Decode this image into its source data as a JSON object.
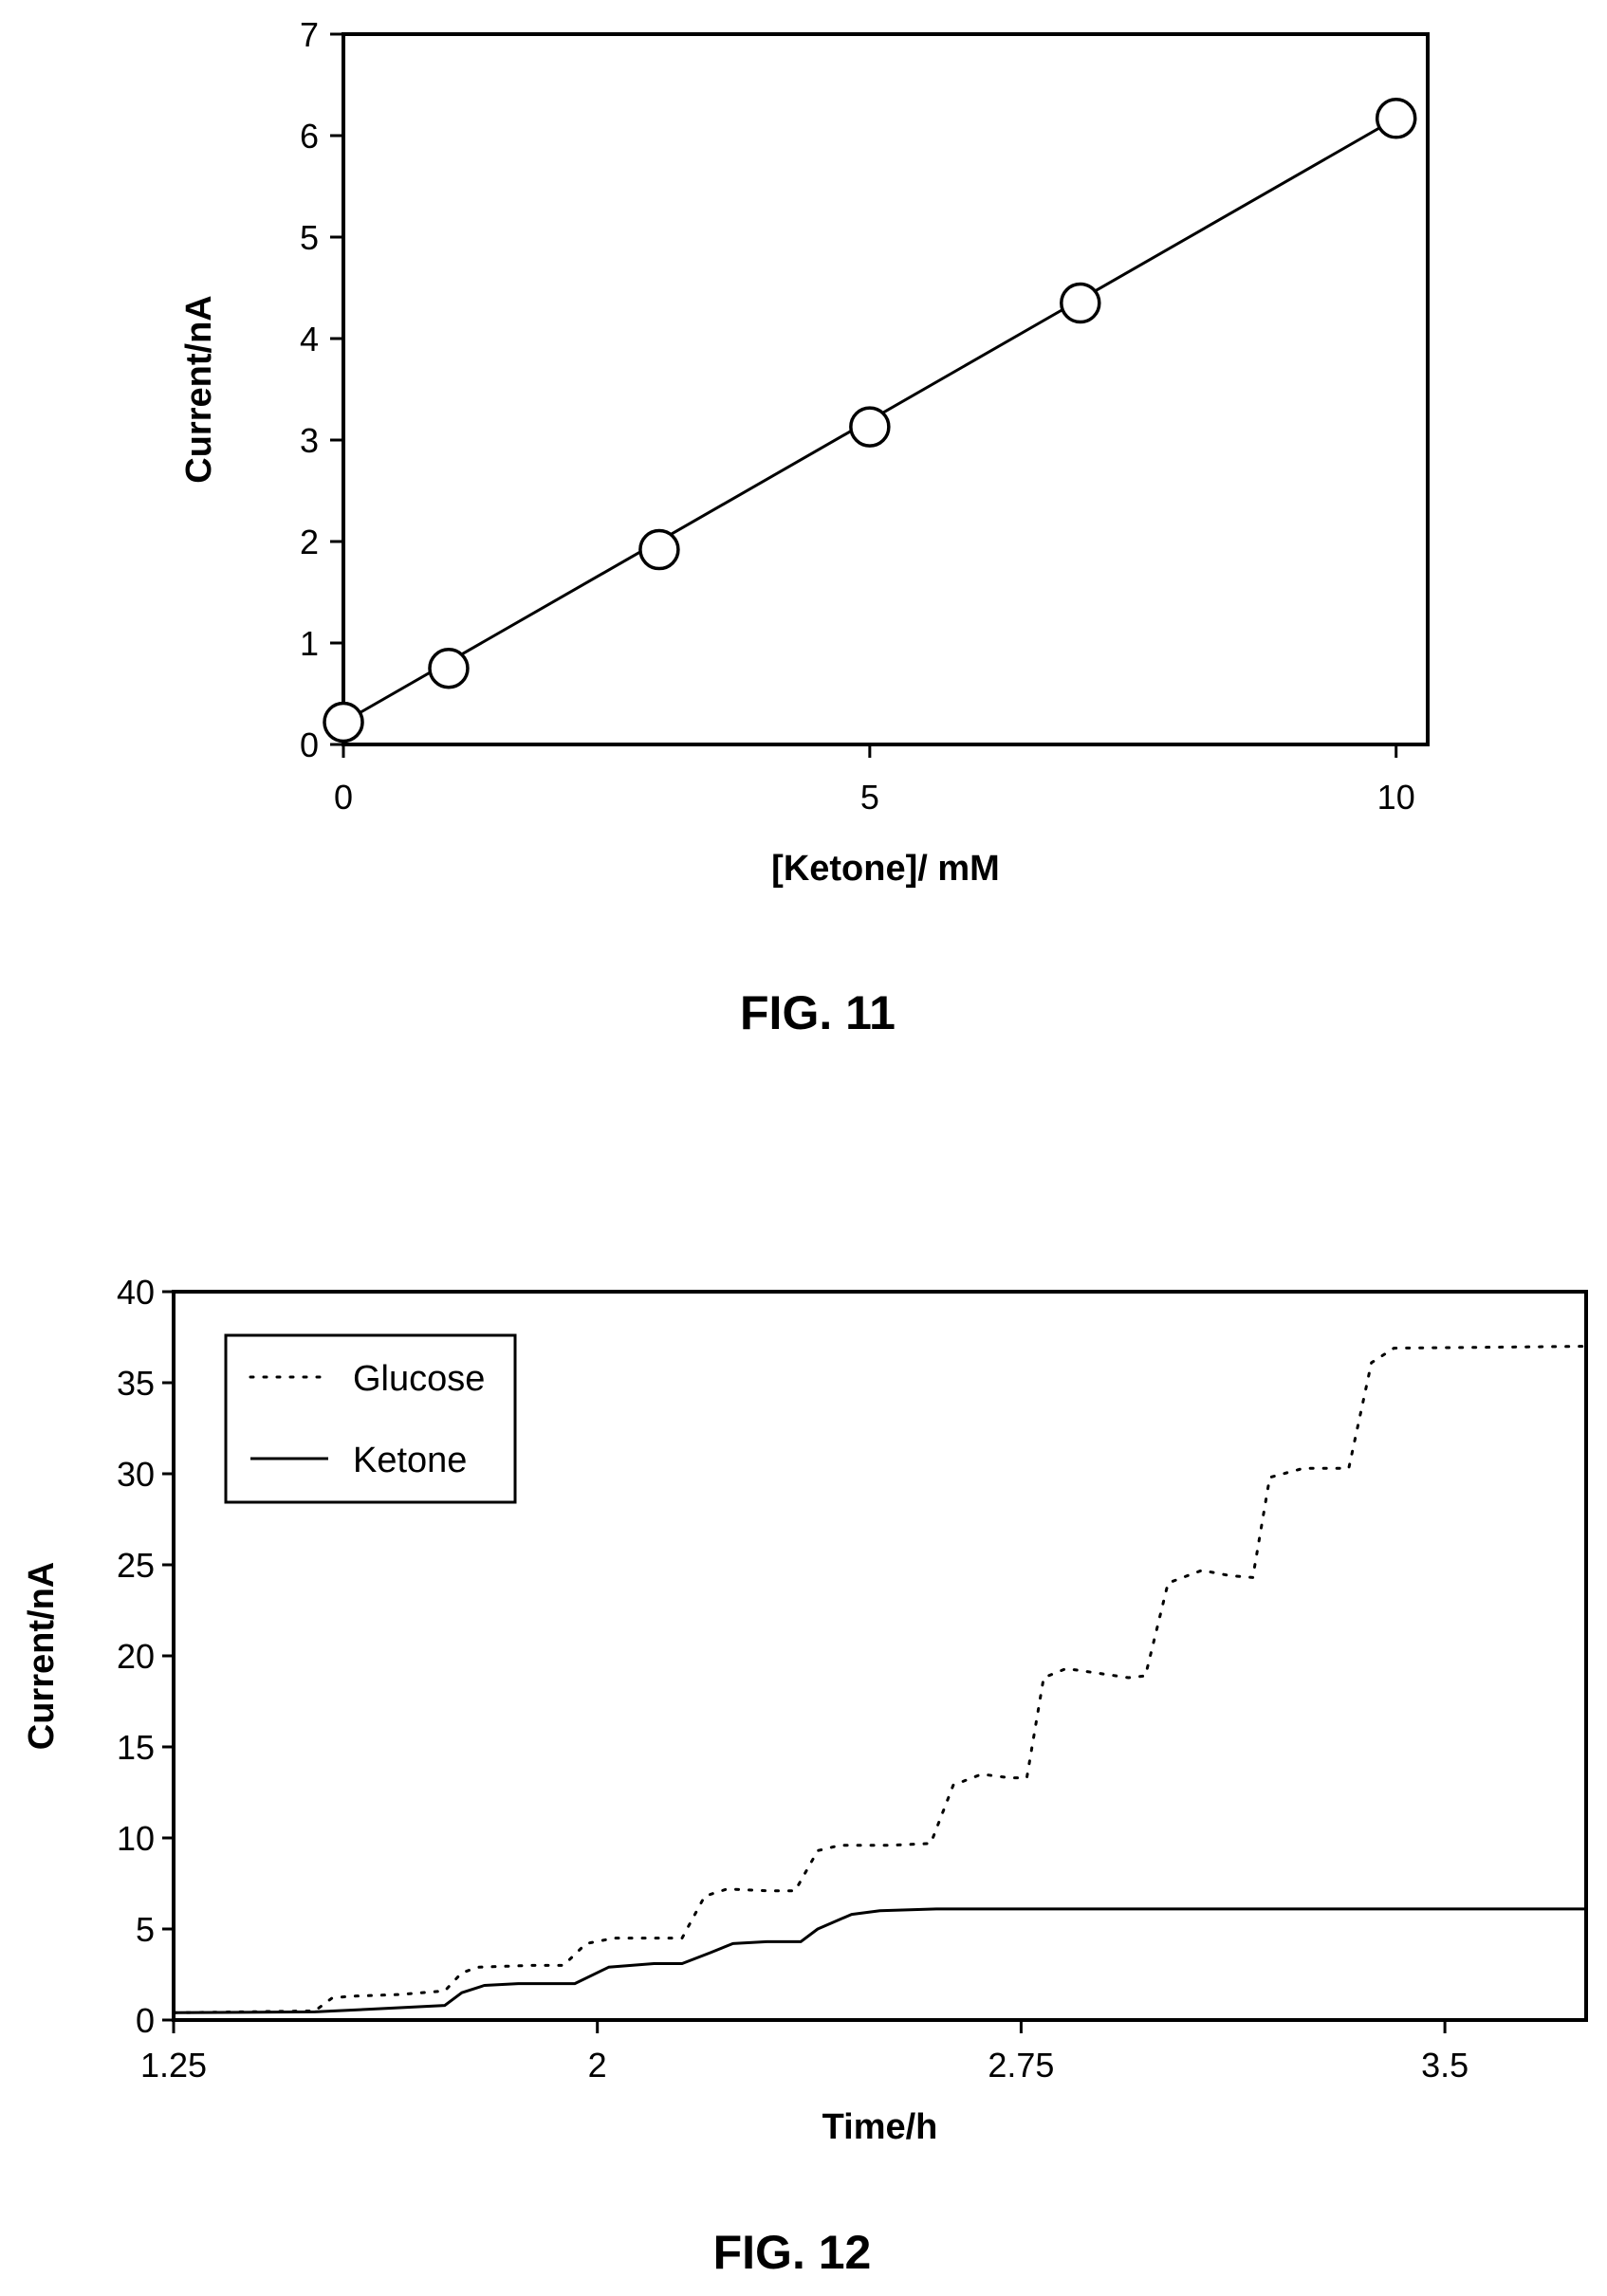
{
  "chart_data": [
    {
      "type": "scatter",
      "caption": "FIG. 11",
      "xlabel": "[Ketone]/ mM",
      "ylabel": "Current/nA",
      "xlim": [
        0,
        10.3
      ],
      "ylim": [
        0,
        7
      ],
      "xticks": [
        0,
        5,
        10
      ],
      "yticks": [
        0,
        1,
        2,
        3,
        4,
        5,
        6,
        7
      ],
      "grid": false,
      "markers": "open-circle",
      "fit_line": {
        "x": [
          0,
          10
        ],
        "y": [
          0.22,
          6.17
        ]
      },
      "series": [
        {
          "x": [
            0,
            1,
            3,
            5,
            7,
            10
          ],
          "y": [
            0.22,
            0.75,
            1.92,
            3.13,
            4.35,
            6.17
          ]
        }
      ]
    },
    {
      "type": "line",
      "caption": "FIG. 12",
      "xlabel": "Time/h",
      "ylabel": "Current/nA",
      "xlim": [
        1.25,
        3.75
      ],
      "ylim": [
        0,
        40
      ],
      "xticks": [
        1.25,
        2,
        2.75,
        3.5
      ],
      "yticks": [
        0,
        5,
        10,
        15,
        20,
        25,
        30,
        35,
        40
      ],
      "grid": false,
      "legend_position": "top-left",
      "series": [
        {
          "name": "Glucose",
          "style": "dotted",
          "x": [
            1.25,
            1.5,
            1.53,
            1.56,
            1.65,
            1.73,
            1.76,
            1.79,
            1.88,
            1.94,
            1.98,
            2.03,
            2.15,
            2.19,
            2.23,
            2.3,
            2.35,
            2.39,
            2.43,
            2.52,
            2.59,
            2.63,
            2.68,
            2.73,
            2.76,
            2.79,
            2.83,
            2.94,
            2.97,
            3.01,
            3.07,
            3.12,
            3.16,
            3.19,
            3.25,
            3.33,
            3.37,
            3.41,
            3.75
          ],
          "y": [
            0.4,
            0.5,
            1.2,
            1.3,
            1.4,
            1.6,
            2.6,
            2.9,
            3.0,
            3.0,
            4.2,
            4.5,
            4.5,
            6.8,
            7.2,
            7.1,
            7.1,
            9.3,
            9.6,
            9.6,
            9.7,
            12.9,
            13.5,
            13.3,
            13.3,
            18.8,
            19.3,
            18.8,
            18.9,
            24.0,
            24.7,
            24.4,
            24.3,
            29.8,
            30.3,
            30.3,
            36.1,
            36.9,
            37.0
          ]
        },
        {
          "name": "Ketone",
          "style": "solid",
          "x": [
            1.25,
            1.5,
            1.6,
            1.73,
            1.76,
            1.8,
            1.86,
            1.96,
            2.02,
            2.1,
            2.15,
            2.2,
            2.24,
            2.3,
            2.36,
            2.39,
            2.45,
            2.5,
            2.6,
            2.75,
            3.0,
            3.5,
            3.75
          ],
          "y": [
            0.4,
            0.45,
            0.6,
            0.8,
            1.5,
            1.9,
            2.0,
            2.0,
            2.9,
            3.1,
            3.1,
            3.7,
            4.2,
            4.3,
            4.3,
            5.0,
            5.8,
            6.0,
            6.1,
            6.1,
            6.1,
            6.1,
            6.1
          ]
        }
      ]
    }
  ]
}
